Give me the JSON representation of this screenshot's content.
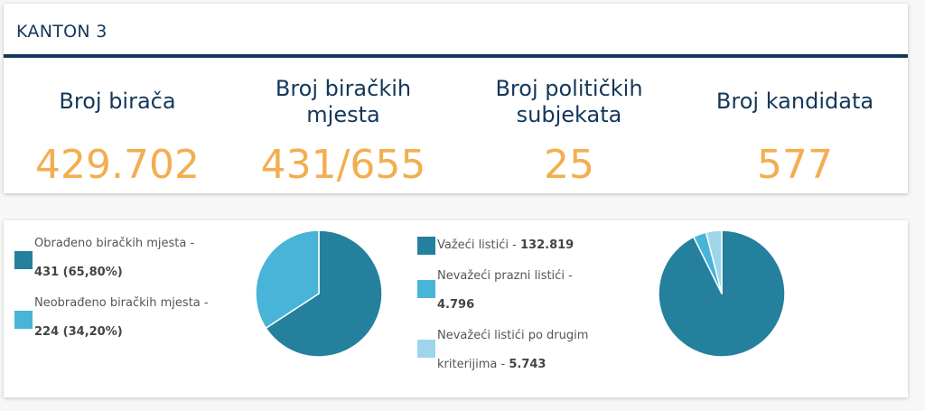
{
  "header": {
    "title": "KANTON 3"
  },
  "stats": [
    {
      "label": "Broj birača",
      "value": "429.702"
    },
    {
      "label": "Broj biračkih mjesta",
      "value": "431/655"
    },
    {
      "label": "Broj političkih subjekata",
      "value": "25"
    },
    {
      "label": "Broj kandidata",
      "value": "577"
    }
  ],
  "stations": {
    "legend": [
      {
        "label": "Obrađeno biračkih mjesta -",
        "value": "431 (65,80%)",
        "color": "#24809c"
      },
      {
        "label": "Neobrađeno biračkih mjesta -",
        "value": "224 (34,20%)",
        "color": "#47b4d8"
      }
    ]
  },
  "ballots": {
    "legend": [
      {
        "label": "Važeći listići -",
        "value": "132.819",
        "color": "#24809c"
      },
      {
        "label": "Nevažeći prazni listići -",
        "value": "4.796",
        "color": "#47b4d8"
      },
      {
        "label": "Nevažeći listići po drugim kriterijima -",
        "value": "5.743",
        "color": "#9dd6ea"
      }
    ]
  },
  "chart_data": [
    {
      "type": "pie",
      "categories": [
        "Obrađeno biračkih mjesta",
        "Neobrađeno biračkih mjesta"
      ],
      "values": [
        431,
        224
      ],
      "colors": [
        "#24809c",
        "#47b4d8"
      ]
    },
    {
      "type": "pie",
      "categories": [
        "Važeći listići",
        "Nevažeći prazni listići",
        "Nevažeći listići po drugim kriterijima"
      ],
      "values": [
        132819,
        4796,
        5743
      ],
      "colors": [
        "#24809c",
        "#47b4d8",
        "#9dd6ea"
      ]
    }
  ]
}
